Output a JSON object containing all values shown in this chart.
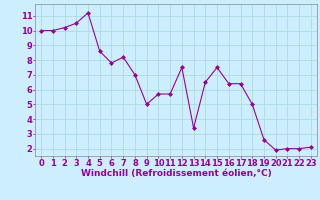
{
  "x": [
    0,
    1,
    2,
    3,
    4,
    5,
    6,
    7,
    8,
    9,
    10,
    11,
    12,
    13,
    14,
    15,
    16,
    17,
    18,
    19,
    20,
    21,
    22,
    23
  ],
  "y": [
    10,
    10,
    10.2,
    10.5,
    11.2,
    8.6,
    7.8,
    8.2,
    7.0,
    5.0,
    5.7,
    5.7,
    7.5,
    3.4,
    6.5,
    7.5,
    6.4,
    6.4,
    5.0,
    2.6,
    1.9,
    2.0,
    2.0,
    2.1
  ],
  "line_color": "#990099",
  "marker_color": "#990099",
  "bg_color": "#cceeff",
  "grid_color": "#aadddd",
  "xlabel": "Windchill (Refroidissement éolien,°C)",
  "xlabel_color": "#990099",
  "xlabel_fontsize": 6.5,
  "tick_label_color": "#990099",
  "tick_label_fontsize": 6,
  "ylim": [
    1.5,
    11.8
  ],
  "xlim": [
    -0.5,
    23.5
  ],
  "yticks": [
    2,
    3,
    4,
    5,
    6,
    7,
    8,
    9,
    10,
    11
  ],
  "xticks": [
    0,
    1,
    2,
    3,
    4,
    5,
    6,
    7,
    8,
    9,
    10,
    11,
    12,
    13,
    14,
    15,
    16,
    17,
    18,
    19,
    20,
    21,
    22,
    23
  ]
}
